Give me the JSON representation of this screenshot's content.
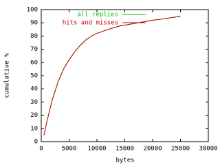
{
  "chart_data": {
    "type": "line",
    "xlabel": "bytes",
    "ylabel": "cumulative %",
    "x": [
      500,
      1000,
      2000,
      3000,
      4000,
      5000,
      6000,
      7000,
      8000,
      9000,
      10000,
      12000,
      14000,
      16000,
      18000,
      20000,
      22000,
      25000
    ],
    "series": [
      {
        "name": "all replies",
        "color": "#00c000",
        "values": [
          5,
          15,
          32,
          45,
          55,
          62,
          68,
          73,
          77,
          80,
          82,
          85,
          87.5,
          89,
          90.5,
          92,
          93,
          95
        ]
      },
      {
        "name": "hits and misses",
        "color": "#c00000",
        "values": [
          5,
          15,
          32,
          45,
          55,
          62,
          68,
          73,
          77,
          80,
          82,
          85,
          87.5,
          89,
          90.5,
          92,
          93,
          95
        ]
      }
    ],
    "xlim": [
      0,
      30000
    ],
    "xticks": [
      0,
      5000,
      10000,
      15000,
      20000,
      25000,
      30000
    ],
    "ylim": [
      0,
      100
    ],
    "yticks": [
      0,
      10,
      20,
      30,
      40,
      50,
      60,
      70,
      80,
      90,
      100
    ],
    "legend": "top-right"
  }
}
